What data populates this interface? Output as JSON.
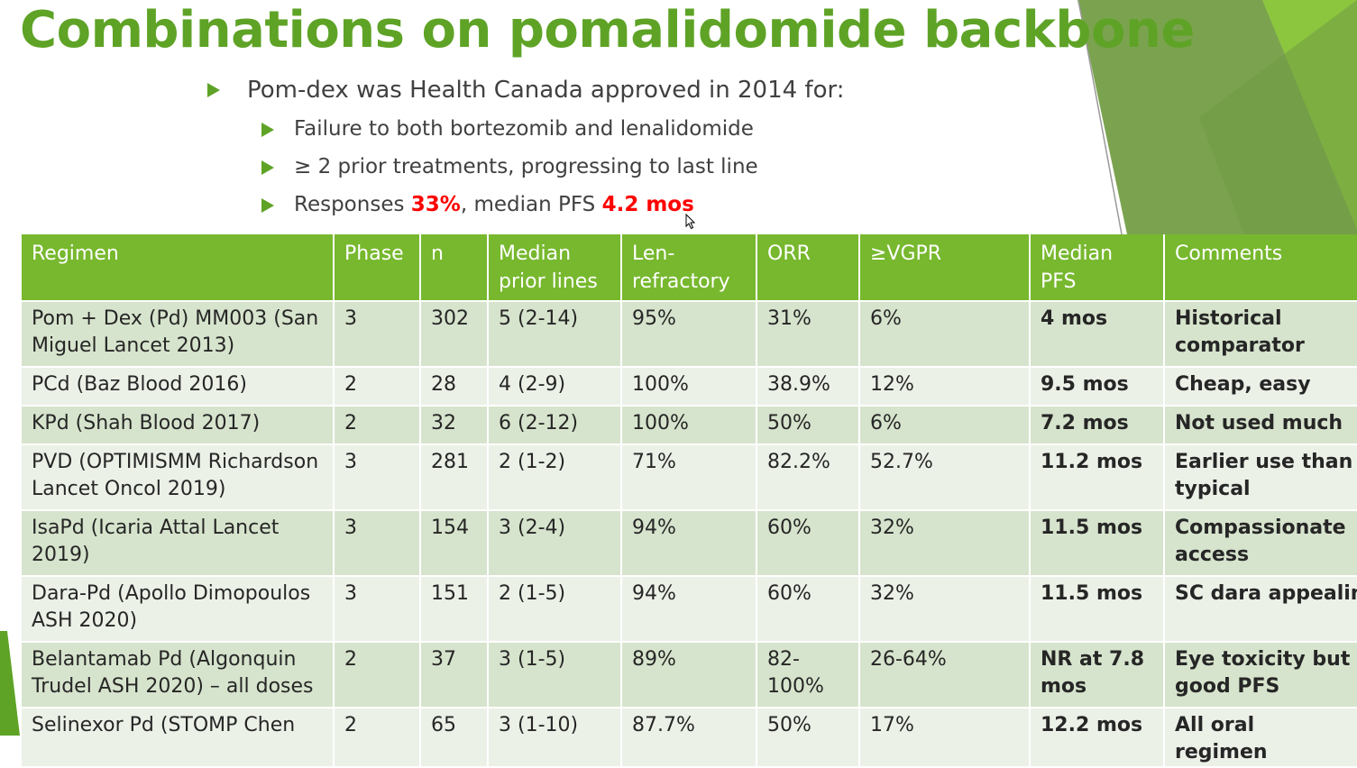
{
  "title": "Combinations on pomalidomide backbone",
  "bullets": {
    "main": "Pom-dex was Health Canada approved in 2014 for:",
    "sub1": "Failure to both bortezomib and lenalidomide",
    "sub2": "≥ 2 prior treatments, progressing to last line",
    "sub3_prefix": "Responses ",
    "sub3_orr": "33%",
    "sub3_mid": ", median PFS ",
    "sub3_pfs": "4.2 mos"
  },
  "table": {
    "headers": [
      "Regimen",
      "Phase",
      "n",
      "Median prior lines",
      "Len-refractory",
      "ORR",
      "≥VGPR",
      "Median PFS",
      "Comments"
    ],
    "rows": [
      [
        "Pom + Dex (Pd) MM003 (San Miguel Lancet 2013)",
        "3",
        "302",
        "5 (2-14)",
        "95%",
        "31%",
        "6%",
        "4 mos",
        "Historical comparator"
      ],
      [
        "PCd (Baz Blood 2016)",
        "2",
        "28",
        "4 (2-9)",
        "100%",
        "38.9%",
        "12%",
        "9.5 mos",
        "Cheap, easy"
      ],
      [
        "KPd (Shah Blood 2017)",
        "2",
        "32",
        "6 (2-12)",
        "100%",
        "50%",
        "6%",
        "7.2 mos",
        "Not used much"
      ],
      [
        "PVD (OPTIMISMM Richardson Lancet Oncol 2019)",
        "3",
        "281",
        "2 (1-2)",
        "71%",
        "82.2%",
        "52.7%",
        "11.2 mos",
        "Earlier use than typical"
      ],
      [
        "IsaPd (Icaria Attal Lancet 2019)",
        "3",
        "154",
        "3 (2-4)",
        "94%",
        "60%",
        "32%",
        "11.5 mos",
        "Compassionate access"
      ],
      [
        "Dara-Pd (Apollo Dimopoulos ASH 2020)",
        "3",
        "151",
        "2 (1-5)",
        "94%",
        "60%",
        "32%",
        "11.5 mos",
        "SC dara appealing"
      ],
      [
        "Belantamab Pd (Algonquin Trudel ASH 2020) – all doses",
        "2",
        "37",
        "3 (1-5)",
        "89%",
        "82-100%",
        "26-64%",
        "NR at 7.8 mos",
        "Eye toxicity but good PFS"
      ],
      [
        "Selinexor Pd (STOMP Chen",
        "2",
        "65",
        "3 (1-10)",
        "87.7%",
        "50%",
        "17%",
        "12.2 mos",
        "All oral regimen"
      ]
    ]
  },
  "colors": {
    "title_green": "#5ea326",
    "header_green": "#77b82e",
    "row_dark": "#d7e4cd",
    "row_light": "#ecf1e8",
    "highlight_red": "#ff0000"
  },
  "icons": [
    "bullet-triangle-icon",
    "mouse-cursor-icon"
  ]
}
